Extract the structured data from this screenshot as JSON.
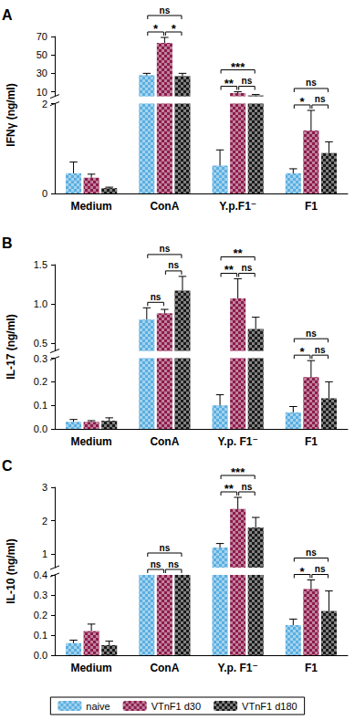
{
  "chart_data": [
    {
      "type": "bar",
      "title": "A",
      "y_label": "IFNγ (ng/ml)",
      "categories": [
        "Medium",
        "ConA",
        "Y.p.F1⁻",
        "F1"
      ],
      "series": [
        {
          "name": "naive",
          "color": "#5aaee0",
          "values": [
            0.45,
            28,
            0.62,
            0.45
          ],
          "errors": [
            0.25,
            2,
            0.35,
            0.1
          ]
        },
        {
          "name": "VTnF1 d30",
          "color": "#8c1c4c",
          "values": [
            0.35,
            63,
            8.5,
            1.4
          ],
          "errors": [
            0.08,
            6,
            1.5,
            0.45
          ]
        },
        {
          "name": "VTnF1 d180",
          "color": "#1a1a1a",
          "values": [
            0.12,
            27,
            6,
            0.9
          ],
          "errors": [
            0.02,
            3,
            1,
            0.25
          ]
        }
      ],
      "ylim": [
        0,
        70
      ],
      "y_break": [
        2,
        5
      ],
      "yticks": [
        0,
        2,
        10,
        30,
        50,
        70
      ],
      "significance": [
        {
          "category": "ConA",
          "from": "naive",
          "to": "VTnF1 d30",
          "label": "*"
        },
        {
          "category": "ConA",
          "from": "VTnF1 d30",
          "to": "VTnF1 d180",
          "label": "*"
        },
        {
          "category": "ConA",
          "from": "naive",
          "to": "VTnF1 d180",
          "label": "ns"
        },
        {
          "category": "Y.p.F1⁻",
          "from": "naive",
          "to": "VTnF1 d30",
          "label": "**"
        },
        {
          "category": "Y.p.F1⁻",
          "from": "VTnF1 d30",
          "to": "VTnF1 d180",
          "label": "ns"
        },
        {
          "category": "Y.p.F1⁻",
          "from": "naive",
          "to": "VTnF1 d180",
          "label": "***"
        },
        {
          "category": "F1",
          "from": "naive",
          "to": "VTnF1 d30",
          "label": "*"
        },
        {
          "category": "F1",
          "from": "VTnF1 d30",
          "to": "VTnF1 d180",
          "label": "ns"
        },
        {
          "category": "F1",
          "from": "naive",
          "to": "VTnF1 d180",
          "label": "ns"
        }
      ]
    },
    {
      "type": "bar",
      "title": "B",
      "y_label": "IL-17 (ng/ml)",
      "categories": [
        "Medium",
        "ConA",
        "Y.p. F1⁻",
        "F1"
      ],
      "series": [
        {
          "name": "naive",
          "color": "#5aaee0",
          "values": [
            0.03,
            0.8,
            0.1,
            0.07
          ],
          "errors": [
            0.01,
            0.15,
            0.045,
            0.025
          ]
        },
        {
          "name": "VTnF1 d30",
          "color": "#8c1c4c",
          "values": [
            0.03,
            0.88,
            1.07,
            0.22
          ],
          "errors": [
            0.005,
            0.05,
            0.25,
            0.07
          ]
        },
        {
          "name": "VTnF1 d180",
          "color": "#1a1a1a",
          "values": [
            0.035,
            1.17,
            0.68,
            0.13
          ],
          "errors": [
            0.012,
            0.18,
            0.15,
            0.07
          ]
        }
      ],
      "ylim": [
        0,
        1.5
      ],
      "y_break": [
        0.3,
        0.4
      ],
      "yticks": [
        {
          "value": 0,
          "label": "0.0"
        },
        0.1,
        0.2,
        0.3,
        0.5,
        {
          "value": 1,
          "label": "1.0"
        },
        1.5
      ],
      "significance": [
        {
          "category": "ConA",
          "from": "naive",
          "to": "VTnF1 d30",
          "label": "ns"
        },
        {
          "category": "ConA",
          "from": "VTnF1 d30",
          "to": "VTnF1 d180",
          "label": "ns"
        },
        {
          "category": "ConA",
          "from": "naive",
          "to": "VTnF1 d180",
          "label": "ns"
        },
        {
          "category": "Y.p. F1⁻",
          "from": "naive",
          "to": "VTnF1 d30",
          "label": "**"
        },
        {
          "category": "Y.p. F1⁻",
          "from": "VTnF1 d30",
          "to": "VTnF1 d180",
          "label": "ns"
        },
        {
          "category": "Y.p. F1⁻",
          "from": "naive",
          "to": "VTnF1 d180",
          "label": "**"
        },
        {
          "category": "F1",
          "from": "naive",
          "to": "VTnF1 d30",
          "label": "*"
        },
        {
          "category": "F1",
          "from": "VTnF1 d30",
          "to": "VTnF1 d180",
          "label": "ns"
        },
        {
          "category": "F1",
          "from": "naive",
          "to": "VTnF1 d180",
          "label": "ns"
        }
      ]
    },
    {
      "type": "bar",
      "title": "C",
      "y_label": "IL-10 (ng/ml)",
      "categories": [
        "Medium",
        "ConA",
        "Y.p. F1⁻",
        "F1"
      ],
      "series": [
        {
          "name": "naive",
          "color": "#5aaee0",
          "values": [
            0.06,
            0.42,
            1.2,
            0.15
          ],
          "errors": [
            0.015,
            0.02,
            0.12,
            0.03
          ]
        },
        {
          "name": "VTnF1 d30",
          "color": "#8c1c4c",
          "values": [
            0.12,
            0.43,
            2.35,
            0.33
          ],
          "errors": [
            0.035,
            0.02,
            0.35,
            0.045
          ]
        },
        {
          "name": "VTnF1 d180",
          "color": "#1a1a1a",
          "values": [
            0.05,
            0.42,
            1.8,
            0.22
          ],
          "errors": [
            0.02,
            0.02,
            0.3,
            0.1
          ]
        }
      ],
      "ylim": [
        0,
        3
      ],
      "y_break": [
        0.4,
        0.6
      ],
      "yticks": [
        {
          "value": 0,
          "label": "0.0"
        },
        0.1,
        0.2,
        0.3,
        0.4,
        1,
        2,
        3
      ],
      "legend": "bottom",
      "significance": [
        {
          "category": "ConA",
          "from": "naive",
          "to": "VTnF1 d30",
          "label": "ns"
        },
        {
          "category": "ConA",
          "from": "VTnF1 d30",
          "to": "VTnF1 d180",
          "label": "ns"
        },
        {
          "category": "ConA",
          "from": "naive",
          "to": "VTnF1 d180",
          "label": "ns"
        },
        {
          "category": "Y.p. F1⁻",
          "from": "naive",
          "to": "VTnF1 d30",
          "label": "**"
        },
        {
          "category": "Y.p. F1⁻",
          "from": "VTnF1 d30",
          "to": "VTnF1 d180",
          "label": "ns"
        },
        {
          "category": "Y.p. F1⁻",
          "from": "naive",
          "to": "VTnF1 d180",
          "label": "***"
        },
        {
          "category": "F1",
          "from": "naive",
          "to": "VTnF1 d30",
          "label": "*"
        },
        {
          "category": "F1",
          "from": "VTnF1 d30",
          "to": "VTnF1 d180",
          "label": "ns"
        },
        {
          "category": "F1",
          "from": "naive",
          "to": "VTnF1 d180",
          "label": "ns"
        }
      ]
    }
  ]
}
